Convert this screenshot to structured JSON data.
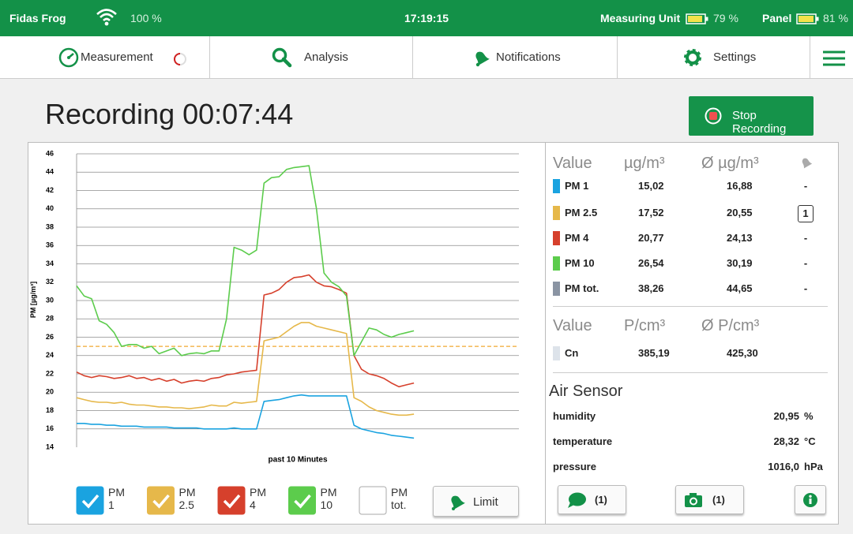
{
  "status_bar": {
    "app_name": "Fidas Frog",
    "wifi": "100 %",
    "time": "17:19:15",
    "measuring_unit": "Measuring Unit",
    "measuring_unit_battery": "79 %",
    "panel": "Panel",
    "panel_battery": "81 %"
  },
  "nav": {
    "tabs": [
      "Measurement",
      "Analysis",
      "Notifications",
      "Settings"
    ]
  },
  "header": {
    "title": "Recording 00:07:44",
    "stop_button": "Stop Recording"
  },
  "chart_data": {
    "type": "line",
    "ylabel": "PM [µg/m³]",
    "xlabel": "past 10 Minutes",
    "categories": [
      null,
      null,
      null,
      null,
      null,
      null,
      null,
      null,
      null,
      null,
      null,
      null,
      null,
      null,
      null,
      null,
      null,
      null,
      null,
      null,
      null,
      null,
      null,
      null,
      null,
      null,
      null,
      null,
      null,
      null,
      null,
      null,
      null,
      null,
      null,
      null,
      null,
      null,
      null,
      null,
      null,
      null,
      null,
      null,
      null,
      null,
      null,
      null,
      null,
      null,
      null,
      null,
      null,
      null,
      null,
      null,
      null,
      null,
      null,
      null
    ],
    "ylim": [
      14,
      46
    ],
    "yticks": [
      14,
      16,
      18,
      20,
      22,
      24,
      26,
      28,
      30,
      32,
      34,
      36,
      38,
      40,
      42,
      44,
      46
    ],
    "grid": true,
    "limit": 25,
    "limit_color": "#f0a830",
    "limit_label": "Limit",
    "series": [
      {
        "name": "PM 1",
        "color": "#1aa3e0",
        "visible": true,
        "values": [
          16.6,
          16.6,
          16.5,
          16.5,
          16.4,
          16.4,
          16.3,
          16.3,
          16.3,
          16.2,
          16.2,
          16.2,
          16.2,
          16.1,
          16.1,
          16.1,
          16.1,
          16.0,
          16.0,
          16.0,
          16.0,
          16.1,
          16.0,
          16.0,
          16.0,
          19.0,
          19.1,
          19.2,
          19.4,
          19.6,
          19.7,
          19.6,
          19.6,
          19.6,
          19.6,
          19.6,
          19.6,
          16.4,
          16.0,
          15.8,
          15.6,
          15.5,
          15.3,
          15.2,
          15.1,
          15.0,
          null,
          null,
          null,
          null,
          null,
          null,
          null,
          null,
          null,
          null,
          null,
          null,
          null,
          null
        ]
      },
      {
        "name": "PM 2.5",
        "color": "#e6b84a",
        "visible": true,
        "values": [
          19.4,
          19.2,
          19.0,
          18.9,
          18.9,
          18.8,
          18.9,
          18.7,
          18.6,
          18.6,
          18.5,
          18.4,
          18.4,
          18.3,
          18.3,
          18.2,
          18.3,
          18.4,
          18.6,
          18.5,
          18.5,
          18.9,
          18.8,
          18.9,
          19.0,
          25.6,
          25.8,
          26.0,
          26.6,
          27.2,
          27.6,
          27.6,
          27.2,
          27.0,
          26.8,
          26.6,
          26.4,
          19.4,
          19.0,
          18.4,
          18.0,
          17.8,
          17.6,
          17.5,
          17.5,
          17.6,
          null,
          null,
          null,
          null,
          null,
          null,
          null,
          null,
          null,
          null,
          null,
          null,
          null,
          null
        ]
      },
      {
        "name": "PM 4",
        "color": "#d6402c",
        "visible": true,
        "values": [
          22.2,
          21.8,
          21.6,
          21.8,
          21.7,
          21.5,
          21.6,
          21.8,
          21.5,
          21.6,
          21.3,
          21.5,
          21.2,
          21.4,
          21.0,
          21.2,
          21.3,
          21.2,
          21.5,
          21.6,
          21.9,
          22.0,
          22.2,
          22.3,
          22.4,
          30.6,
          30.8,
          31.2,
          32.0,
          32.5,
          32.6,
          32.8,
          32.0,
          31.6,
          31.5,
          31.2,
          30.8,
          24.0,
          22.5,
          22.0,
          21.8,
          21.5,
          21.0,
          20.6,
          20.8,
          21.0,
          null,
          null,
          null,
          null,
          null,
          null,
          null,
          null,
          null,
          null,
          null,
          null,
          null,
          null
        ]
      },
      {
        "name": "PM 10",
        "color": "#5ccc4c",
        "visible": true,
        "values": [
          31.6,
          30.5,
          30.2,
          27.8,
          27.4,
          26.5,
          25.0,
          25.2,
          25.2,
          24.8,
          25.0,
          24.2,
          24.5,
          24.8,
          24.0,
          24.2,
          24.3,
          24.2,
          24.5,
          24.5,
          28.0,
          35.8,
          35.5,
          35.0,
          35.5,
          42.8,
          43.4,
          43.5,
          44.3,
          44.5,
          44.6,
          44.7,
          40.0,
          33.0,
          32.0,
          31.5,
          30.5,
          24.0,
          25.5,
          27.0,
          26.8,
          26.3,
          26.0,
          26.3,
          26.5,
          26.7,
          null,
          null,
          null,
          null,
          null,
          null,
          null,
          null,
          null,
          null,
          null,
          null,
          null,
          null
        ]
      },
      {
        "name": "PM tot.",
        "color": "#8a94a3",
        "visible": false,
        "values": [
          null,
          null,
          null,
          null,
          null,
          null,
          null,
          null,
          null,
          null,
          null,
          null,
          null,
          null,
          null,
          null,
          null,
          null,
          null,
          null,
          null,
          null,
          null,
          null,
          null,
          null,
          null,
          null,
          null,
          null,
          null,
          null,
          null,
          null,
          null,
          null,
          null,
          null,
          null,
          null,
          null,
          null,
          null,
          null,
          null,
          null,
          null,
          null,
          null,
          null,
          null,
          null,
          null,
          null,
          null,
          null,
          null,
          null,
          null,
          null
        ]
      }
    ]
  },
  "panel": {
    "mass": {
      "headers": [
        "Value",
        "µg/m³",
        "Ø µg/m³"
      ],
      "rows": [
        {
          "name": "PM 1",
          "color": "#1aa3e0",
          "value": "15,02",
          "average": "16,88",
          "alarm": "-"
        },
        {
          "name": "PM 2.5",
          "color": "#e6b84a",
          "value": "17,52",
          "average": "20,55",
          "alarm": "1"
        },
        {
          "name": "PM 4",
          "color": "#d6402c",
          "value": "20,77",
          "average": "24,13",
          "alarm": "-"
        },
        {
          "name": "PM 10",
          "color": "#5ccc4c",
          "value": "26,54",
          "average": "30,19",
          "alarm": "-"
        },
        {
          "name": "PM tot.",
          "color": "#8a94a3",
          "value": "38,26",
          "average": "44,65",
          "alarm": "-"
        }
      ]
    },
    "count": {
      "headers": [
        "Value",
        "P/cm³",
        "Ø P/cm³"
      ],
      "rows": [
        {
          "name": "Cn",
          "color": "#dde3ea",
          "value": "385,19",
          "average": "425,30"
        }
      ]
    },
    "air_sensor": {
      "title": "Air Sensor",
      "rows": [
        {
          "name": "humidity",
          "value": "20,95",
          "unit": "%"
        },
        {
          "name": "temperature",
          "value": "28,32",
          "unit": "°C"
        },
        {
          "name": "pressure",
          "value": "1016,0",
          "unit": "hPa"
        }
      ]
    },
    "buttons": {
      "comments": "(1)",
      "photos": "(1)"
    }
  }
}
